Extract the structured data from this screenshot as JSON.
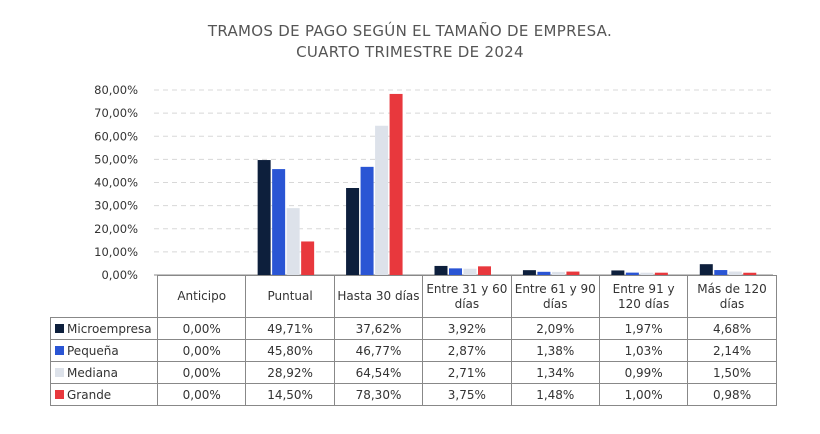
{
  "chart_data": {
    "type": "bar",
    "title": [
      "TRAMOS DE PAGO SEGÚN EL TAMAÑO DE EMPRESA.",
      "CUARTO TRIMESTRE DE 2024"
    ],
    "categories": [
      "Anticipo",
      "Puntual",
      "Hasta 30 días",
      "Entre 31 y 60 días",
      "Entre 61 y 90 días",
      "Entre 91 y 120 días",
      "Más de 120 días"
    ],
    "series": [
      {
        "name": "Microempresa",
        "color": "#0d1f3c",
        "values": [
          0.0,
          49.71,
          37.62,
          3.92,
          2.09,
          1.97,
          4.68
        ],
        "labels": [
          "0,00%",
          "49,71%",
          "37,62%",
          "3,92%",
          "2,09%",
          "1,97%",
          "4,68%"
        ]
      },
      {
        "name": "Pequeña",
        "color": "#2a55d4",
        "values": [
          0.0,
          45.8,
          46.77,
          2.87,
          1.38,
          1.03,
          2.14
        ],
        "labels": [
          "0,00%",
          "45,80%",
          "46,77%",
          "2,87%",
          "1,38%",
          "1,03%",
          "2,14%"
        ]
      },
      {
        "name": "Mediana",
        "color": "#dde2ea",
        "values": [
          0.0,
          28.92,
          64.54,
          2.71,
          1.34,
          0.99,
          1.5
        ],
        "labels": [
          "0,00%",
          "28,92%",
          "64,54%",
          "2,71%",
          "1,34%",
          "0,99%",
          "1,50%"
        ]
      },
      {
        "name": "Grande",
        "color": "#e8383d",
        "values": [
          0.0,
          14.5,
          78.3,
          3.75,
          1.48,
          1.0,
          0.98
        ],
        "labels": [
          "0,00%",
          "14,50%",
          "78,30%",
          "3,75%",
          "1,48%",
          "1,00%",
          "0,98%"
        ]
      }
    ],
    "yticks": [
      "0,00%",
      "10,00%",
      "20,00%",
      "30,00%",
      "40,00%",
      "50,00%",
      "60,00%",
      "70,00%",
      "80,00%"
    ],
    "ylim": [
      0,
      80
    ],
    "grid": true,
    "legend": "data-table-left"
  }
}
